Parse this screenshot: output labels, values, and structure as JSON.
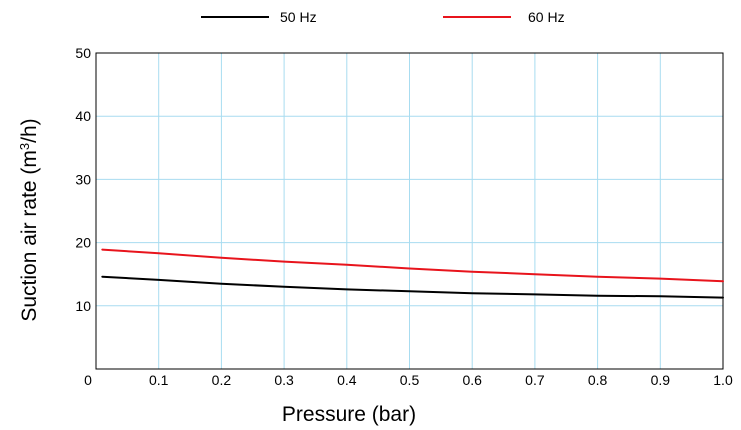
{
  "chart_data": {
    "type": "line",
    "xlabel": "Pressure (bar)",
    "ylabel": {
      "pre": "Suction air rate (m",
      "sup": "3",
      "post": "/h)"
    },
    "xlim": [
      0,
      1.0
    ],
    "ylim": [
      0,
      50
    ],
    "x_ticks": [
      0,
      0.1,
      0.2,
      0.3,
      0.4,
      0.5,
      0.6,
      0.7,
      0.8,
      0.9,
      1.0
    ],
    "x_tick_labels": [
      "0",
      "0.1",
      "0.2",
      "0.3",
      "0.4",
      "0.5",
      "0.6",
      "0.7",
      "0.8",
      "0.9",
      "1.0"
    ],
    "y_ticks": [
      10,
      20,
      30,
      40,
      50
    ],
    "y_tick_labels": [
      "10",
      "20",
      "30",
      "40",
      "50"
    ],
    "grid": true,
    "grid_color": "#a8dcf0",
    "legend_position": "top",
    "series": [
      {
        "name": "50 Hz",
        "color": "#000000",
        "x": [
          0.01,
          0.1,
          0.2,
          0.3,
          0.4,
          0.5,
          0.6,
          0.7,
          0.8,
          0.9,
          1.0
        ],
        "y": [
          14.6,
          14.1,
          13.5,
          13.0,
          12.6,
          12.3,
          12.0,
          11.8,
          11.6,
          11.5,
          11.3
        ]
      },
      {
        "name": "60 Hz",
        "color": "#e8141c",
        "x": [
          0.01,
          0.1,
          0.2,
          0.3,
          0.4,
          0.5,
          0.6,
          0.7,
          0.8,
          0.9,
          1.0
        ],
        "y": [
          18.9,
          18.3,
          17.6,
          17.0,
          16.5,
          15.9,
          15.4,
          15.0,
          14.6,
          14.3,
          13.9
        ]
      }
    ]
  }
}
